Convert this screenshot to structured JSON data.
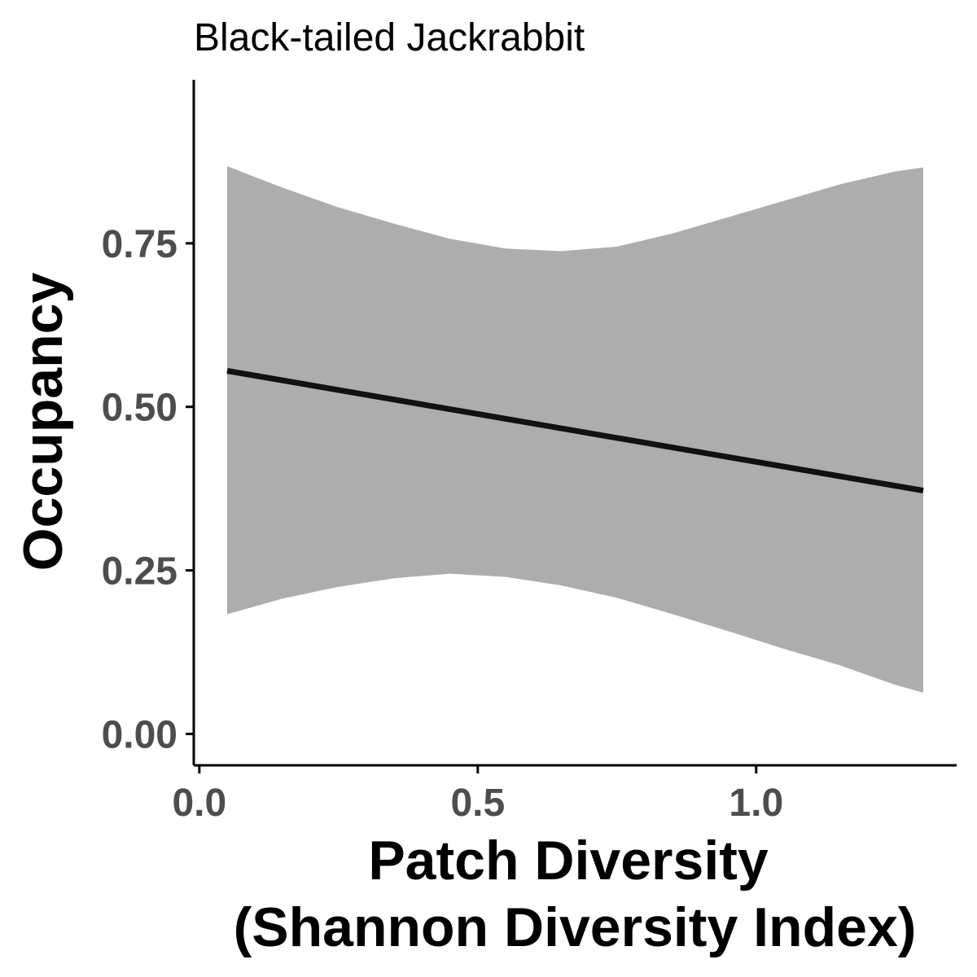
{
  "chart_data": {
    "type": "line",
    "title": "Black-tailed Jackrabbit",
    "xlabel_lines": [
      "Patch Diversity",
      "(Shannon Diversity Index)"
    ],
    "ylabel": "Occupancy",
    "xlim": [
      -0.01,
      1.36
    ],
    "ylim": [
      -0.048,
      1.0
    ],
    "x_ticks": [
      0.0,
      0.5,
      1.0
    ],
    "x_tick_labels": [
      "0.0",
      "0.5",
      "1.0"
    ],
    "y_ticks": [
      0.0,
      0.25,
      0.5,
      0.75
    ],
    "y_tick_labels": [
      "0.00",
      "0.25",
      "0.50",
      "0.75"
    ],
    "grid": false,
    "series": [
      {
        "fit": {
          "x": [
            0.05,
            1.3
          ],
          "y": [
            0.555,
            0.372
          ]
        },
        "ribbon": {
          "x": [
            0.05,
            0.15,
            0.25,
            0.35,
            0.45,
            0.55,
            0.65,
            0.75,
            0.85,
            0.95,
            1.05,
            1.15,
            1.25,
            1.3
          ],
          "upper": [
            0.868,
            0.835,
            0.805,
            0.78,
            0.757,
            0.742,
            0.738,
            0.745,
            0.765,
            0.79,
            0.815,
            0.84,
            0.86,
            0.866
          ],
          "lower": [
            0.183,
            0.207,
            0.225,
            0.238,
            0.245,
            0.24,
            0.227,
            0.208,
            0.183,
            0.157,
            0.13,
            0.105,
            0.075,
            0.063
          ]
        }
      }
    ],
    "colors": {
      "ribbon": "#adadad",
      "line": "#111111",
      "axis": "#000000",
      "tick_label": "#4d4d4d"
    }
  }
}
